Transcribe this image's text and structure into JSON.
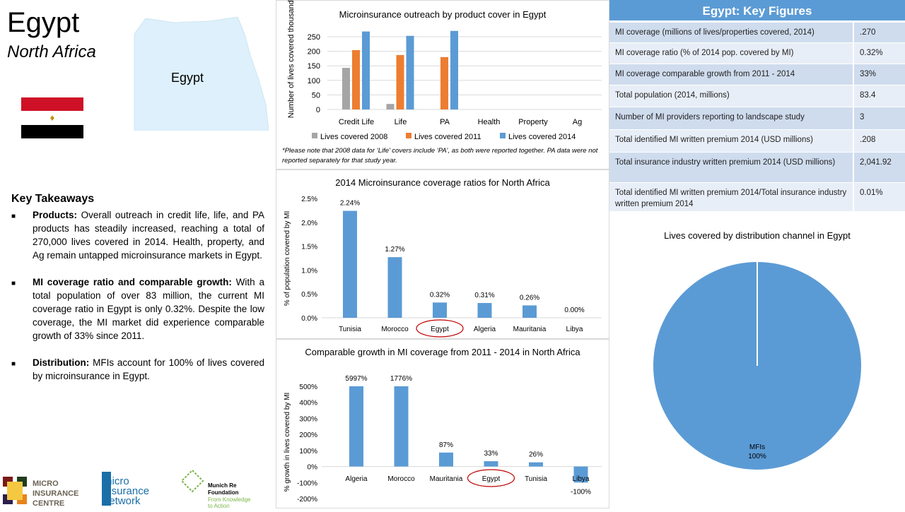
{
  "header": {
    "title": "Egypt",
    "subtitle": "North Africa",
    "map_label": "Egypt"
  },
  "takeaways": {
    "heading": "Key Takeaways",
    "items": [
      {
        "label": "Products:",
        "text": " Overall outreach in credit life, life, and PA products has steadily increased, reaching a total of 270,000 lives covered in 2014. Health, property, and Ag remain untapped microinsurance markets in Egypt."
      },
      {
        "label": "MI coverage ratio and comparable growth:",
        "text": " With a total population of over 83 million, the current MI coverage ratio in Egypt is only 0.32%. Despite the low coverage, the MI market did experience comparable growth of 33% since 2011."
      },
      {
        "label": "Distribution:",
        "text": " MFIs account for 100% of lives covered by microinsurance in Egypt."
      }
    ]
  },
  "logos": {
    "mic": "MICRO INSURANCE CENTRE",
    "min": "micro insurance network",
    "munich_1": "Munich Re Foundation",
    "munich_2": "From Knowledge to Action"
  },
  "key_figures": {
    "title": "Egypt: Key Figures",
    "rows": [
      {
        "label": "MI coverage (millions of lives/properties covered, 2014)",
        "value": ".270"
      },
      {
        "label": "MI coverage ratio (% of 2014 pop. covered by MI)",
        "value": "0.32%"
      },
      {
        "label": "MI coverage comparable growth from 2011 - 2014",
        "value": "33%"
      },
      {
        "label": "Total population (2014, millions)",
        "value": "83.4"
      },
      {
        "label": "Number of MI providers reporting to landscape study",
        "value": "3"
      },
      {
        "label": "Total identified MI written premium 2014 (USD millions)",
        "value": ".208"
      },
      {
        "label": "Total insurance industry written premium 2014 (USD millions)",
        "value": "2,041.92"
      },
      {
        "label": "Total identified MI written premium 2014/Total insurance industry written premium 2014",
        "value": "0.01%"
      }
    ]
  },
  "colors": {
    "gray": "#a5a5a5",
    "orange": "#ed7d31",
    "blue": "#5b9bd5",
    "highlight": "#c00000"
  },
  "chart_data": [
    {
      "type": "bar",
      "title": "Microinsurance outreach by product cover in Egypt",
      "ylabel": "Number of lives covered thousands",
      "ylim": [
        0,
        275
      ],
      "yticks": [
        "0",
        "50",
        "100",
        "150",
        "200",
        "250"
      ],
      "categories": [
        "Credit Life",
        "Life",
        "PA",
        "Health",
        "Property",
        "Ag"
      ],
      "series": [
        {
          "name": "Lives covered 2008",
          "values": [
            143,
            19,
            0,
            0,
            0,
            0
          ]
        },
        {
          "name": "Lives covered 2011",
          "values": [
            204,
            187,
            180,
            0,
            0,
            0
          ]
        },
        {
          "name": "Lives covered 2014",
          "values": [
            268,
            253,
            270,
            0,
            0,
            0
          ]
        }
      ],
      "legend": "bottom",
      "grid": true,
      "note": "*Please note that 2008 data for ‘Life’ covers include ‘PA’, as both were reported together. PA data were not reported separately for that study year."
    },
    {
      "type": "bar",
      "title": "2014 Microinsurance coverage ratios for North Africa",
      "ylabel": "% of population covered by MI",
      "ylim": [
        0,
        2.5
      ],
      "yticks": [
        "0.0%",
        "0.5%",
        "1.0%",
        "1.5%",
        "2.0%",
        "2.5%"
      ],
      "categories": [
        "Tunisia",
        "Morocco",
        "Egypt",
        "Algeria",
        "Mauritania",
        "Libya"
      ],
      "values": [
        2.24,
        1.27,
        0.32,
        0.31,
        0.26,
        0.0
      ],
      "data_labels": [
        "2.24%",
        "1.27%",
        "0.32%",
        "0.31%",
        "0.26%",
        "0.00%"
      ],
      "highlighted": "Egypt",
      "grid": false
    },
    {
      "type": "bar",
      "title": "Comparable growth in MI coverage from 2011 - 2014 in North Africa",
      "ylabel": "% growth in lives covered by MI",
      "ylim": [
        -200,
        500
      ],
      "yticks": [
        "-200%",
        "-100%",
        "0%",
        "100%",
        "200%",
        "300%",
        "400%",
        "500%"
      ],
      "categories": [
        "Algeria",
        "Morocco",
        "Mauritania",
        "Egypt",
        "Tunisia",
        "Libya"
      ],
      "values": [
        5997,
        1776,
        87,
        33,
        26,
        -100
      ],
      "data_labels": [
        "5997%",
        "1776%",
        "87%",
        "33%",
        "26%",
        "-100%"
      ],
      "highlighted": "Egypt",
      "grid": false
    },
    {
      "type": "pie",
      "title": "Lives covered by distribution channel in Egypt",
      "labels": [
        "MFIs"
      ],
      "values": [
        100
      ],
      "data_labels": [
        "100%"
      ]
    }
  ]
}
